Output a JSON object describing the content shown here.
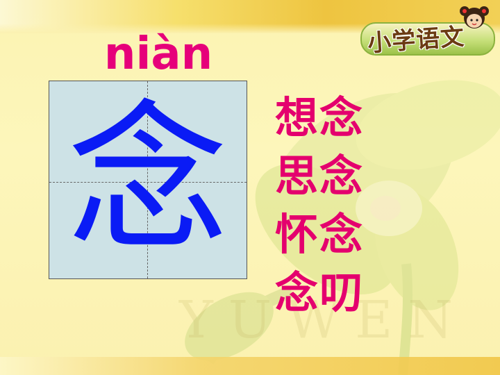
{
  "slide": {
    "logo_text": "小学语文",
    "watermark_text": "YUWEN",
    "pinyin": "niàn",
    "character": "念",
    "words": [
      "想念",
      "思念",
      "怀念",
      "念叨"
    ]
  },
  "colors": {
    "pinyin": "#e6007a",
    "character": "#0a1bf5",
    "words": "#e4006e",
    "grid_background": "#cde2e6"
  },
  "icons": {
    "logo_mascot": "cartoon-girl-icon",
    "background": "orchid-flower"
  }
}
